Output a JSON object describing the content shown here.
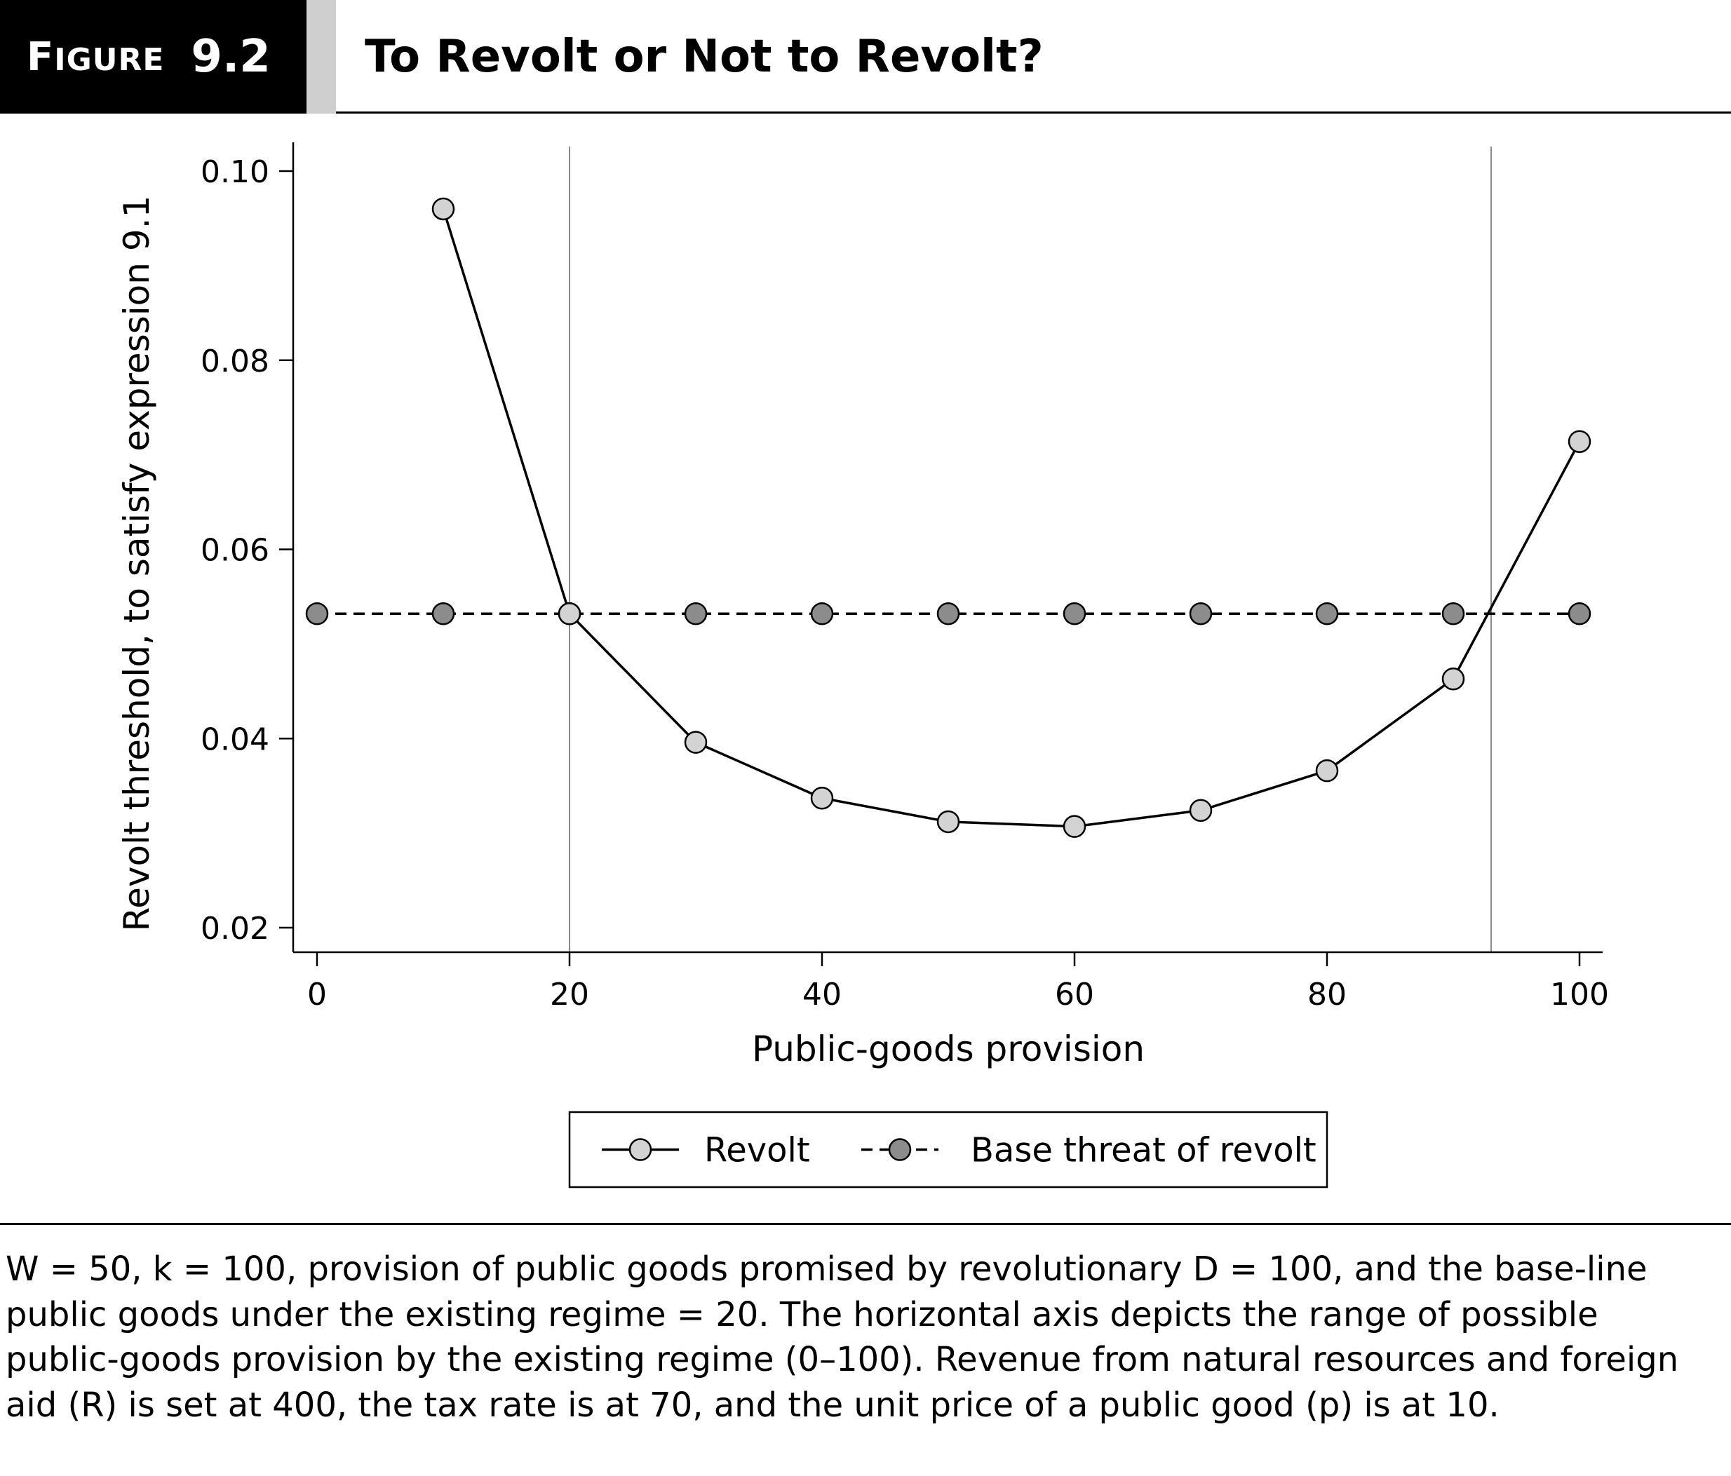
{
  "header": {
    "figure_word_first": "F",
    "figure_word_rest": "IGURE",
    "figure_number": "9.2",
    "title": "To Revolt or Not to Revolt?"
  },
  "chart_data": {
    "type": "line",
    "title": "To Revolt or Not to Revolt?",
    "xlabel": "Public-goods provision",
    "ylabel": "Revolt threshold, to satisfy expression 9.1",
    "xlim": [
      -2,
      102
    ],
    "ylim": [
      0.0175,
      0.1025
    ],
    "xticks": [
      0,
      20,
      40,
      60,
      80,
      100
    ],
    "xtick_labels": [
      "0",
      "20",
      "40",
      "60",
      "80",
      "100"
    ],
    "yticks": [
      0.02,
      0.04,
      0.06,
      0.08,
      0.1
    ],
    "ytick_labels": [
      "0.02",
      "0.04",
      "0.06",
      "0.08",
      "0.10"
    ],
    "grid": false,
    "reference_lines_x": [
      20,
      93
    ],
    "legend_position": "bottom",
    "series": [
      {
        "name": "Revolt",
        "style": "solid",
        "marker_color": "#d3d3d3",
        "x": [
          10,
          20,
          30,
          40,
          50,
          60,
          70,
          80,
          90,
          100
        ],
        "y": [
          0.096,
          0.0532,
          0.0396,
          0.0337,
          0.0312,
          0.0307,
          0.0324,
          0.0366,
          0.0463,
          0.0714
        ]
      },
      {
        "name": "Base threat of revolt",
        "style": "dashed",
        "marker_color": "#8c8c8c",
        "x": [
          0,
          10,
          20,
          30,
          40,
          50,
          60,
          70,
          80,
          90,
          100
        ],
        "y": [
          0.0532,
          0.0532,
          0.0532,
          0.0532,
          0.0532,
          0.0532,
          0.0532,
          0.0532,
          0.0532,
          0.0532,
          0.0532
        ]
      }
    ]
  },
  "caption": "W = 50, k = 100, provision of public goods promised by revolutionary D = 100, and the base-line public goods under the existing regime = 20. The horizontal axis depicts the range of possible public-goods provision by the existing regime (0–100). Revenue from natural resources and foreign aid (R) is set at 400, the tax rate is at 70, and the unit price of a public good (p) is at 10."
}
